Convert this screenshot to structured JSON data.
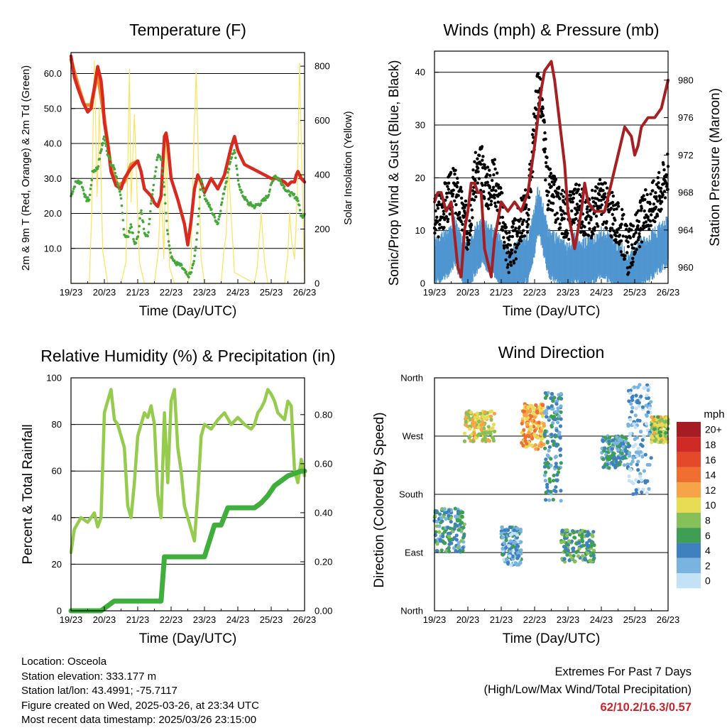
{
  "colors": {
    "temp2m": "#d92a1f",
    "temp9m": "#f08a2c",
    "dewpoint": "#46a83a",
    "solar": "#fbe35c",
    "wind": "#4f95d0",
    "gust": "#000000",
    "pressure": "#a62023",
    "rh": "#96cc4d",
    "precip": "#3fae3d",
    "extremes": "#c8262e"
  },
  "x_ticks": [
    "19/23",
    "20/23",
    "21/23",
    "22/23",
    "23/23",
    "24/23",
    "25/23",
    "26/23"
  ],
  "xlabel": "Time (Day/UTC)",
  "chart_data": [
    {
      "id": "temperature",
      "type": "line",
      "title": "Temperature (F)",
      "ylabel_left": "2m & 9m T (Red, Orange) & 2m Td (Green)",
      "ylabel_right": "Solar Insolation (Yellow)",
      "xlim": [
        0,
        7
      ],
      "ylim_left": [
        0,
        66
      ],
      "ylim_right": [
        0,
        850
      ],
      "ticks_left": [
        "10.0",
        "20.0",
        "30.0",
        "40.0",
        "50.0",
        "60.0"
      ],
      "ticks_right": [
        "0",
        "200",
        "400",
        "600",
        "800"
      ],
      "grid": true,
      "series": [
        {
          "key": "temp2m",
          "axis": "left",
          "x": [
            0,
            0.1,
            0.2,
            0.35,
            0.5,
            0.6,
            0.7,
            0.8,
            0.9,
            0.95,
            1.0,
            1.1,
            1.2,
            1.35,
            1.5,
            1.6,
            1.8,
            2.0,
            2.1,
            2.2,
            2.4,
            2.5,
            2.6,
            2.7,
            2.75,
            2.8,
            2.85,
            2.9,
            3.0,
            3.2,
            3.4,
            3.5,
            3.6,
            3.7,
            3.8,
            3.9,
            4.0,
            4.2,
            4.4,
            4.6,
            4.8,
            4.9,
            5.0,
            5.2,
            5.4,
            5.6,
            5.8,
            6.0,
            6.2,
            6.4,
            6.5,
            6.6,
            6.7,
            6.75,
            6.8,
            6.9,
            7.0
          ],
          "y": [
            65,
            59,
            56,
            52,
            49,
            50,
            56,
            62,
            58,
            53,
            46,
            40,
            32,
            28,
            27,
            30,
            33,
            35,
            32,
            27,
            25,
            23,
            22,
            25,
            34,
            42,
            43,
            40,
            30,
            24,
            17,
            11,
            18,
            27,
            31,
            29,
            26,
            30,
            27,
            31,
            39,
            42,
            38,
            34,
            33,
            32,
            31,
            30,
            30,
            29,
            28,
            29,
            29,
            31,
            32,
            30,
            29
          ]
        },
        {
          "key": "dewpoint",
          "axis": "left",
          "x": [
            0,
            0.15,
            0.3,
            0.45,
            0.55,
            0.65,
            0.8,
            0.9,
            1.0,
            1.1,
            1.2,
            1.3,
            1.5,
            1.6,
            1.7,
            1.8,
            1.9,
            2.0,
            2.1,
            2.2,
            2.3,
            2.4,
            2.5,
            2.6,
            2.7,
            2.8,
            2.9,
            3.0,
            3.1,
            3.3,
            3.5,
            3.6,
            3.7,
            3.8,
            3.9,
            4.0,
            4.2,
            4.4,
            4.6,
            4.8,
            4.9,
            5.0,
            5.1,
            5.3,
            5.5,
            5.7,
            5.9,
            6.1,
            6.3,
            6.5,
            6.7,
            6.8,
            6.9,
            7.0
          ],
          "y": [
            25,
            29,
            29,
            24,
            24,
            32,
            33,
            38,
            42,
            37,
            34,
            33,
            24,
            14,
            13,
            17,
            11,
            13,
            21,
            15,
            13,
            23,
            30,
            37,
            36,
            26,
            14,
            8,
            6,
            5,
            2,
            3,
            7,
            16,
            30,
            25,
            21,
            17,
            27,
            36,
            38,
            30,
            26,
            23,
            22,
            23,
            25,
            31,
            29,
            26,
            25,
            24,
            19,
            20
          ]
        },
        {
          "key": "solar",
          "axis": "right",
          "x": [
            0,
            0.55,
            0.62,
            0.7,
            0.78,
            0.85,
            0.95,
            1.1,
            1.5,
            1.65,
            1.75,
            1.8,
            1.9,
            2.05,
            2.2,
            2.5,
            2.62,
            2.7,
            2.78,
            2.85,
            2.95,
            3.1,
            3.5,
            3.6,
            3.68,
            3.75,
            3.82,
            3.9,
            4.0,
            4.5,
            4.58,
            4.65,
            4.72,
            4.8,
            4.9,
            5.5,
            5.58,
            5.65,
            5.7,
            5.8,
            5.9,
            6.4,
            6.5,
            6.55,
            6.62,
            6.7,
            6.78,
            6.85,
            7.0
          ],
          "y": [
            0,
            0,
            260,
            820,
            320,
            650,
            120,
            0,
            0,
            80,
            790,
            300,
            620,
            80,
            0,
            0,
            120,
            380,
            90,
            540,
            60,
            0,
            0,
            90,
            520,
            780,
            450,
            90,
            0,
            0,
            120,
            180,
            430,
            250,
            40,
            0,
            60,
            180,
            260,
            80,
            0,
            0,
            110,
            260,
            150,
            90,
            320,
            810,
            0
          ]
        },
        {
          "key": "temp9m",
          "axis": "left",
          "x": [
            0,
            0.2,
            0.4,
            0.6,
            0.8,
            1.0,
            1.2,
            1.4,
            1.6,
            1.8,
            2.0
          ],
          "y": [
            64,
            57,
            51,
            51,
            60,
            47,
            33,
            28,
            29,
            34,
            35
          ]
        }
      ]
    },
    {
      "id": "winds",
      "type": "scatter",
      "title": "Winds (mph) & Pressure (mb)",
      "ylabel_left": "Sonic/Prop Wind & Gust (Blue, Black)",
      "ylabel_right": "Station Pressure (Maroon)",
      "xlim": [
        0,
        7
      ],
      "ylim_left": [
        0,
        44
      ],
      "ylim_right": [
        958.3,
        983.1
      ],
      "ticks_left": [
        "0",
        "10",
        "20",
        "30",
        "40"
      ],
      "ticks_right": [
        "960",
        "964",
        "968",
        "972",
        "976",
        "980"
      ],
      "grid": true,
      "series": [
        {
          "key": "pressure",
          "axis": "right",
          "x": [
            0,
            0.1,
            0.2,
            0.35,
            0.5,
            0.7,
            0.8,
            0.9,
            1.0,
            1.1,
            1.2,
            1.3,
            1.4,
            1.5,
            1.7,
            1.8,
            2.0,
            2.2,
            2.4,
            2.6,
            2.8,
            3.0,
            3.1,
            3.2,
            3.3,
            3.5,
            3.6,
            3.7,
            3.8,
            3.9,
            4.0,
            4.2,
            4.4,
            4.5,
            4.6,
            4.8,
            5.0,
            5.1,
            5.3,
            5.5,
            5.7,
            5.9,
            6.0,
            6.1,
            6.2,
            6.4,
            6.5,
            6.6,
            6.8,
            7.0
          ],
          "y": [
            967,
            968,
            968,
            966,
            967,
            960,
            959,
            964,
            966,
            969,
            969,
            968,
            968,
            962,
            959,
            963,
            967,
            966,
            967,
            966,
            968,
            973,
            976,
            979,
            981,
            982,
            980,
            977,
            974,
            971,
            966,
            962,
            966,
            969,
            967,
            966,
            966,
            966,
            969,
            972,
            975,
            974,
            972,
            973,
            975,
            976,
            976,
            976,
            977,
            980
          ]
        },
        {
          "key": "gust",
          "axis": "left",
          "x": [
            0,
            0.2,
            0.4,
            0.6,
            0.8,
            1.0,
            1.2,
            1.4,
            1.6,
            1.8,
            2.0,
            2.2,
            2.4,
            2.6,
            2.8,
            3.0,
            3.1,
            3.2,
            3.4,
            3.6,
            3.8,
            4.0,
            4.2,
            4.4,
            4.6,
            4.8,
            5.0,
            5.2,
            5.4,
            5.6,
            5.8,
            6.0,
            6.2,
            6.4,
            6.6,
            6.8,
            7.0
          ],
          "y": [
            12,
            14,
            16,
            18,
            14,
            10,
            20,
            22,
            18,
            20,
            14,
            6,
            8,
            12,
            14,
            30,
            38,
            34,
            18,
            16,
            14,
            12,
            16,
            14,
            12,
            14,
            16,
            14,
            12,
            10,
            6,
            8,
            12,
            14,
            16,
            18,
            22
          ]
        },
        {
          "key": "wind",
          "axis": "left",
          "x": [
            0,
            0.2,
            0.4,
            0.6,
            0.8,
            1.0,
            1.2,
            1.4,
            1.6,
            1.8,
            2.0,
            2.2,
            2.4,
            2.6,
            2.8,
            3.0,
            3.1,
            3.2,
            3.4,
            3.6,
            3.8,
            4.0,
            4.2,
            4.4,
            4.6,
            4.8,
            5.0,
            5.2,
            5.4,
            5.6,
            5.8,
            6.0,
            6.2,
            6.4,
            6.6,
            6.8,
            7.0
          ],
          "y": [
            4,
            5,
            6,
            8,
            5,
            3,
            6,
            8,
            7,
            6,
            4,
            2,
            3,
            4,
            5,
            10,
            14,
            12,
            6,
            5,
            4,
            3,
            5,
            4,
            4,
            5,
            6,
            5,
            4,
            3,
            1,
            2,
            4,
            5,
            6,
            7,
            8
          ]
        }
      ]
    },
    {
      "id": "humidity",
      "type": "line",
      "title": "Relative Humidity (%) & Precipitation (in)",
      "ylabel_left": "Percent & Total Rainfall",
      "ylim_left": [
        0,
        100
      ],
      "ylim_right": [
        0,
        0.95
      ],
      "xlim": [
        0,
        7
      ],
      "ticks_left": [
        "0",
        "20",
        "40",
        "60",
        "80",
        "100"
      ],
      "ticks_right": [
        "0.00",
        "0.20",
        "0.40",
        "0.60",
        "0.80"
      ],
      "grid": true,
      "series": [
        {
          "key": "rh",
          "axis": "left",
          "x": [
            0,
            0.1,
            0.3,
            0.5,
            0.7,
            0.8,
            0.9,
            1.0,
            1.1,
            1.2,
            1.3,
            1.4,
            1.5,
            1.6,
            1.7,
            1.8,
            1.9,
            2.0,
            2.1,
            2.2,
            2.3,
            2.4,
            2.5,
            2.6,
            2.7,
            2.8,
            2.9,
            3.0,
            3.1,
            3.2,
            3.3,
            3.4,
            3.5,
            3.6,
            3.7,
            3.8,
            3.9,
            4.0,
            4.2,
            4.4,
            4.6,
            4.8,
            5.0,
            5.2,
            5.4,
            5.5,
            5.6,
            5.7,
            5.8,
            5.9,
            6.0,
            6.1,
            6.2,
            6.4,
            6.5,
            6.6,
            6.7,
            6.8,
            6.9,
            7.0
          ],
          "y": [
            25,
            35,
            40,
            38,
            42,
            36,
            40,
            85,
            90,
            95,
            82,
            80,
            75,
            70,
            45,
            40,
            55,
            75,
            80,
            85,
            83,
            88,
            80,
            50,
            40,
            85,
            55,
            90,
            95,
            70,
            60,
            45,
            40,
            35,
            30,
            50,
            75,
            80,
            78,
            82,
            85,
            80,
            83,
            80,
            78,
            80,
            85,
            87,
            90,
            95,
            93,
            90,
            85,
            82,
            90,
            88,
            60,
            55,
            65,
            58
          ]
        },
        {
          "key": "precip",
          "axis": "right",
          "x": [
            0,
            0.5,
            0.9,
            1.1,
            1.3,
            1.6,
            2.0,
            2.4,
            2.7,
            2.8,
            3.0,
            3.4,
            3.8,
            4.0,
            4.3,
            4.5,
            4.7,
            5.0,
            5.5,
            5.7,
            5.9,
            6.1,
            6.3,
            6.5,
            6.7,
            6.9,
            7.0
          ],
          "y": [
            0,
            0,
            0,
            0.02,
            0.04,
            0.04,
            0.04,
            0.04,
            0.04,
            0.22,
            0.22,
            0.22,
            0.22,
            0.22,
            0.35,
            0.35,
            0.42,
            0.42,
            0.42,
            0.44,
            0.47,
            0.51,
            0.53,
            0.55,
            0.56,
            0.57,
            0.57
          ]
        }
      ]
    },
    {
      "id": "direction",
      "type": "scatter",
      "title": "Wind Direction",
      "ylabel_left": "Direction (Colored By Speed)",
      "xlim": [
        0,
        7
      ],
      "ylim": [
        0,
        360
      ],
      "y_ticks": [
        "North",
        "East",
        "South",
        "West",
        "North"
      ],
      "grid": true,
      "clusters": [
        {
          "x0": 0.0,
          "x1": 0.9,
          "dir0": 90,
          "dir1": 160,
          "speed": 5
        },
        {
          "x0": 0.9,
          "x1": 1.8,
          "dir0": 260,
          "dir1": 310,
          "speed": 10
        },
        {
          "x0": 2.0,
          "x1": 2.6,
          "dir0": 70,
          "dir1": 130,
          "speed": 3
        },
        {
          "x0": 2.6,
          "x1": 3.3,
          "dir0": 250,
          "dir1": 320,
          "speed": 12
        },
        {
          "x0": 3.3,
          "x1": 3.8,
          "dir0": 170,
          "dir1": 340,
          "speed": 4
        },
        {
          "x0": 3.8,
          "x1": 4.8,
          "dir0": 75,
          "dir1": 125,
          "speed": 6
        },
        {
          "x0": 5.0,
          "x1": 5.8,
          "dir0": 220,
          "dir1": 270,
          "speed": 4
        },
        {
          "x0": 5.8,
          "x1": 6.5,
          "dir0": 180,
          "dir1": 350,
          "speed": 2
        },
        {
          "x0": 6.5,
          "x1": 7.0,
          "dir0": 260,
          "dir1": 300,
          "speed": 9
        }
      ],
      "legend": {
        "unit": "mph",
        "labels": [
          "20+",
          "18",
          "16",
          "14",
          "12",
          "10",
          "8",
          "6",
          "4",
          "2",
          "0"
        ],
        "colors": [
          "#a51d22",
          "#cf2a26",
          "#e44a2a",
          "#f06f30",
          "#f7a449",
          "#e8dc55",
          "#86c059",
          "#3e9f54",
          "#3f81bf",
          "#79b4e0",
          "#c4e2f5"
        ]
      }
    }
  ],
  "footer": {
    "location": "Location: Osceola",
    "elevation": "Station elevation: 333.177 m",
    "latlon": "Station lat/lon: 43.4991; -75.7117",
    "created": "Figure created on Wed, 2025-03-26, at 23:34 UTC",
    "recent": "Most recent data timestamp: 2025/03/26 23:15:00"
  },
  "extremes": {
    "title": "Extremes For Past 7 Days",
    "subtitle": "(High/Low/Max Wind/Total Precipitation)",
    "value": "62/10.2/16.3/0.57"
  }
}
